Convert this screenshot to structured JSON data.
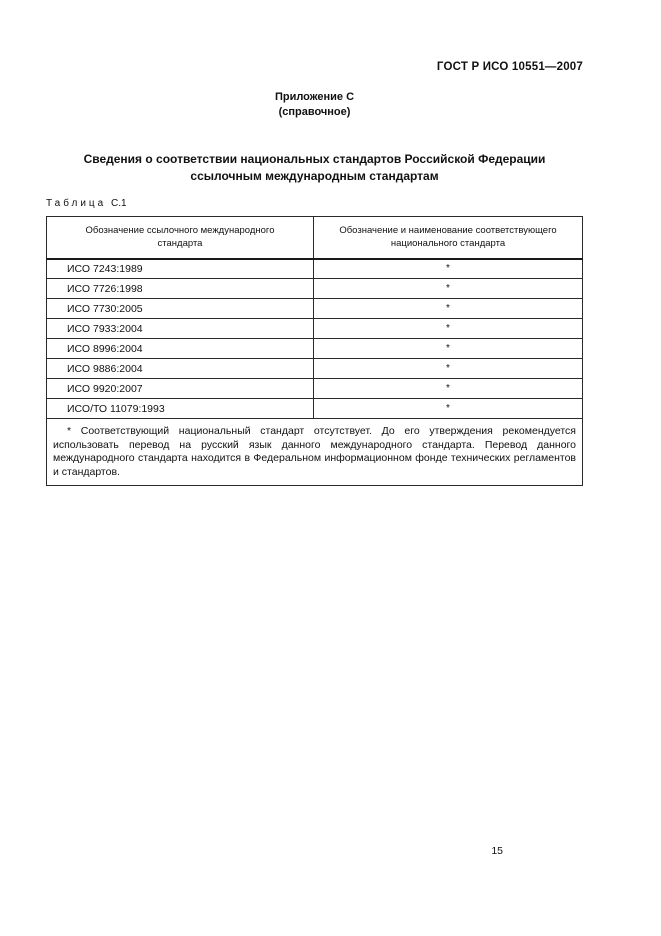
{
  "header": {
    "doc_code": "ГОСТ Р ИСО 10551—2007"
  },
  "annex": {
    "label": "Приложение С",
    "type": "(справочное)"
  },
  "title": {
    "line1": "Сведения о соответствии национальных стандартов Российской Федерации",
    "line2": "ссылочным международным стандартам"
  },
  "table": {
    "label_word": "Таблица",
    "label_number": "С.1",
    "columns": [
      "Обозначение ссылочного международного стандарта",
      "Обозначение и наименование соответствующего национального стандарта"
    ],
    "rows": [
      {
        "international_standard": "ИСО 7243:1989",
        "national_standard": "*"
      },
      {
        "international_standard": "ИСО 7726:1998",
        "national_standard": "*"
      },
      {
        "international_standard": "ИСО 7730:2005",
        "national_standard": "*"
      },
      {
        "international_standard": "ИСО 7933:2004",
        "national_standard": "*"
      },
      {
        "international_standard": "ИСО 8996:2004",
        "national_standard": "*"
      },
      {
        "international_standard": "ИСО 9886:2004",
        "national_standard": "*"
      },
      {
        "international_standard": "ИСО 9920:2007",
        "national_standard": "*"
      },
      {
        "international_standard": "ИСО/ТО 11079:1993",
        "national_standard": "*"
      }
    ],
    "footnote": "* Соответствующий национальный стандарт отсутствует. До его утверждения рекомендуется использовать перевод на русский язык данного международного стандарта. Перевод данного международного стандарта находится в Федеральном информационном фонде технических регламентов и стандартов."
  },
  "footer": {
    "page_number": "15"
  }
}
